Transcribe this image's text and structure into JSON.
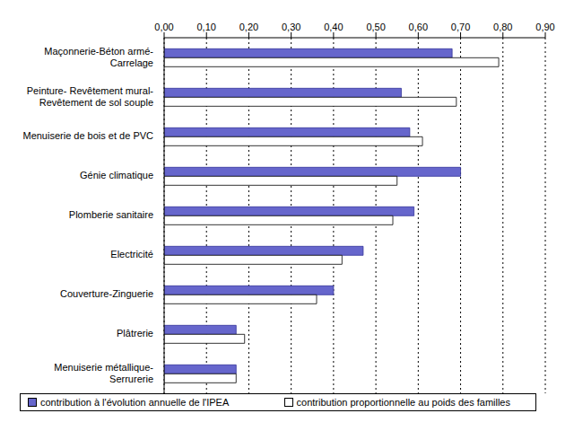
{
  "chart_data": {
    "type": "bar",
    "orientation": "horizontal",
    "categories": [
      "Maçonnerie-Béton armé-\nCarrelage",
      "Peinture- Revêtement mural-\nRevêtement de sol souple",
      "Menuiserie de bois et de PVC",
      "Génie climatique",
      "Plomberie sanitaire",
      "Electricité",
      "Couverture-Zinguerie",
      "Plâtrerie",
      "Menuiserie métallique-\nSerrurerie"
    ],
    "series": [
      {
        "name": "contribution à l'évolution annuelle de l'IPEA",
        "color": "#6666cc",
        "values": [
          0.68,
          0.56,
          0.58,
          0.7,
          0.59,
          0.47,
          0.4,
          0.17,
          0.17
        ]
      },
      {
        "name": "contribution proportionnelle au poids des familles",
        "color": "#ffffff",
        "values": [
          0.79,
          0.69,
          0.61,
          0.55,
          0.54,
          0.42,
          0.36,
          0.19,
          0.17
        ]
      }
    ],
    "xlim": [
      0,
      0.9
    ],
    "xticks": [
      {
        "value": 0,
        "label": "0,00"
      },
      {
        "value": 0.1,
        "label": "0,10"
      },
      {
        "value": 0.2,
        "label": "0,20"
      },
      {
        "value": 0.3,
        "label": "0,30"
      },
      {
        "value": 0.4,
        "label": "0,40"
      },
      {
        "value": 0.5,
        "label": "0,50"
      },
      {
        "value": 0.6,
        "label": "0,60"
      },
      {
        "value": 0.7,
        "label": "0,70"
      },
      {
        "value": 0.8,
        "label": "0,80"
      },
      {
        "value": 0.9,
        "label": "0,90"
      }
    ],
    "grid": true,
    "legend": "bottom"
  }
}
